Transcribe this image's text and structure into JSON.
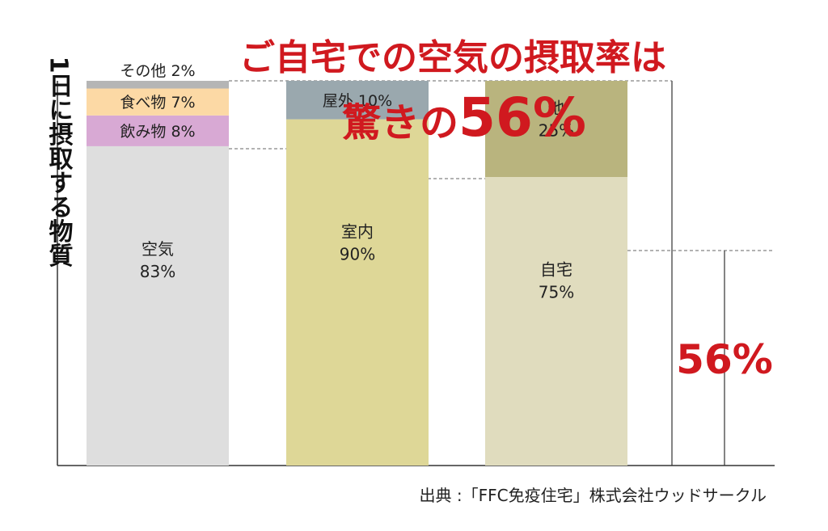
{
  "title_line1": "ご自宅での空気の摂取率は",
  "title_line2_prefix": "驚きの",
  "title_line2_value": "56%",
  "ylabel": "1日に摂取する物質",
  "source": "出典 :「FFC免疫住宅」株式会社ウッドサークル",
  "highlight_value": "56%",
  "colors": {
    "title": "#d0191f",
    "other_food": "#b5b5b5",
    "food": "#fcd9a5",
    "drink": "#d8a9d4",
    "air": "#dedede",
    "outdoor": "#9aa8ae",
    "indoor": "#ded797",
    "other_place": "#b9b47e",
    "home": "#e0dcbe"
  },
  "chart_data": {
    "type": "bar",
    "stacked": true,
    "bars": [
      {
        "segments": [
          {
            "label": "空気",
            "value_text": "83%",
            "value": 83,
            "color": "#dedede"
          },
          {
            "label": "飲み物",
            "value_text": "8%",
            "value": 8,
            "color": "#d8a9d4"
          },
          {
            "label": "食べ物",
            "value_text": "7%",
            "value": 7,
            "color": "#fcd9a5"
          },
          {
            "label": "その他",
            "value_text": "2%",
            "value": 2,
            "color": "#b5b5b5"
          }
        ]
      },
      {
        "segments": [
          {
            "label": "室内",
            "value_text": "90%",
            "value": 90,
            "color": "#ded797"
          },
          {
            "label": "屋外",
            "value_text": "10%",
            "value": 10,
            "color": "#9aa8ae"
          }
        ]
      },
      {
        "segments": [
          {
            "label": "自宅",
            "value_text": "75%",
            "value": 75,
            "color": "#e0dcbe"
          },
          {
            "label": "他",
            "value_text": "25%",
            "value": 25,
            "color": "#b9b47e"
          }
        ]
      }
    ],
    "result": {
      "label": "56%",
      "value": 56
    }
  }
}
